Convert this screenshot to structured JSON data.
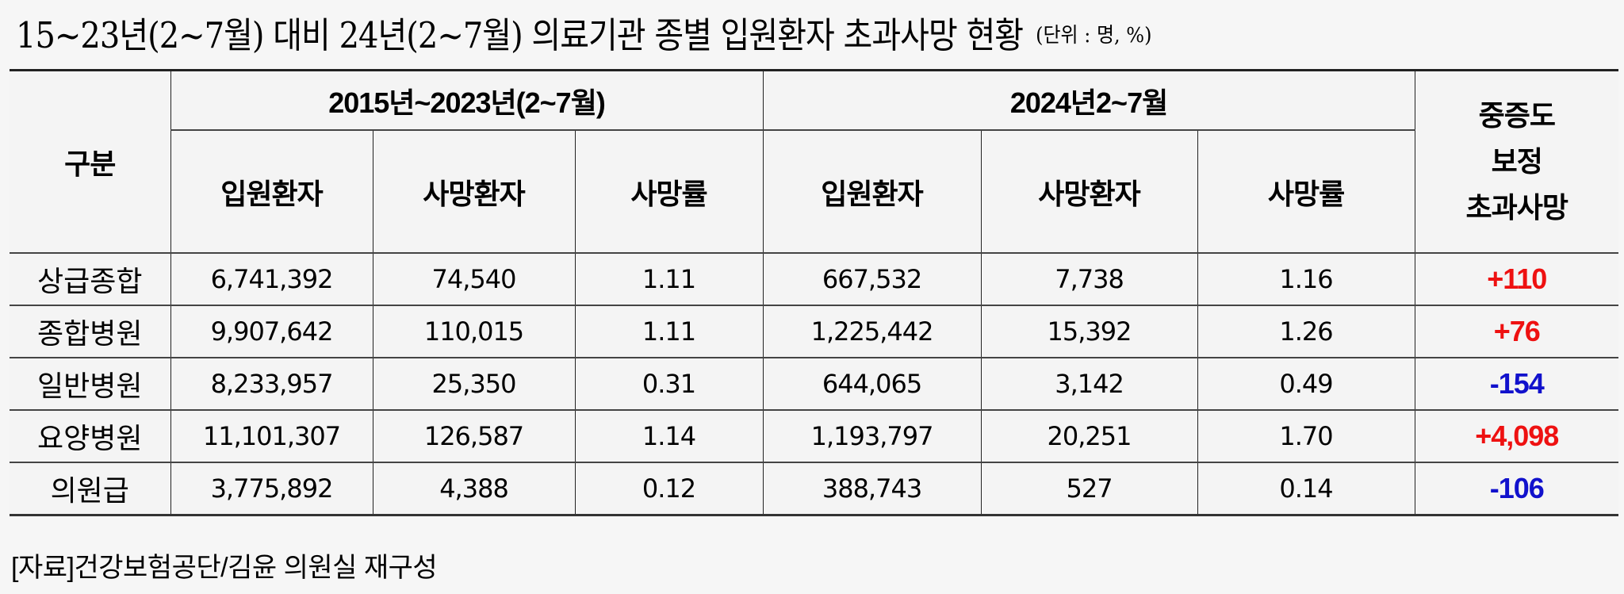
{
  "title": {
    "main": "15~23년(2~7월) 대비 24년(2~7월) 의료기관 종별 입원환자 초과사망 현황",
    "unit": "(단위 : 명, %)"
  },
  "table": {
    "header": {
      "category": "구분",
      "period_1": "2015년~2023년(2~7월)",
      "period_2": "2024년2~7월",
      "severity_adjusted": [
        "중증도",
        "보정",
        "초과사망"
      ],
      "sub_columns_1": [
        "입원환자",
        "사망환자",
        "사망률"
      ],
      "sub_columns_2": [
        "입원환자",
        "사망환자",
        "사망률"
      ]
    },
    "rows": [
      {
        "label": "상급종합",
        "p1_inpatients": "6,741,392",
        "p1_deaths": "74,540",
        "p1_rate": "1.11",
        "p2_inpatients": "667,532",
        "p2_deaths": "7,738",
        "p2_rate": "1.16",
        "excess_deaths": "+110",
        "excess_sign": "pos"
      },
      {
        "label": "종합병원",
        "p1_inpatients": "9,907,642",
        "p1_deaths": "110,015",
        "p1_rate": "1.11",
        "p2_inpatients": "1,225,442",
        "p2_deaths": "15,392",
        "p2_rate": "1.26",
        "excess_deaths": "+76",
        "excess_sign": "pos"
      },
      {
        "label": "일반병원",
        "p1_inpatients": "8,233,957",
        "p1_deaths": "25,350",
        "p1_rate": "0.31",
        "p2_inpatients": "644,065",
        "p2_deaths": "3,142",
        "p2_rate": "0.49",
        "excess_deaths": "-154",
        "excess_sign": "neg"
      },
      {
        "label": "요양병원",
        "p1_inpatients": "11,101,307",
        "p1_deaths": "126,587",
        "p1_rate": "1.14",
        "p2_inpatients": "1,193,797",
        "p2_deaths": "20,251",
        "p2_rate": "1.70",
        "excess_deaths": "+4,098",
        "excess_sign": "pos"
      },
      {
        "label": "의원급",
        "p1_inpatients": "3,775,892",
        "p1_deaths": "4,388",
        "p1_rate": "0.12",
        "p2_inpatients": "388,743",
        "p2_deaths": "527",
        "p2_rate": "0.14",
        "excess_deaths": "-106",
        "excess_sign": "neg"
      }
    ]
  },
  "colors": {
    "positive_excess": "#ee1111",
    "negative_excess": "#1111cc",
    "background": "#f6f6f6"
  },
  "source": "[자료]건강보험공단/김윤 의원실 재구성"
}
